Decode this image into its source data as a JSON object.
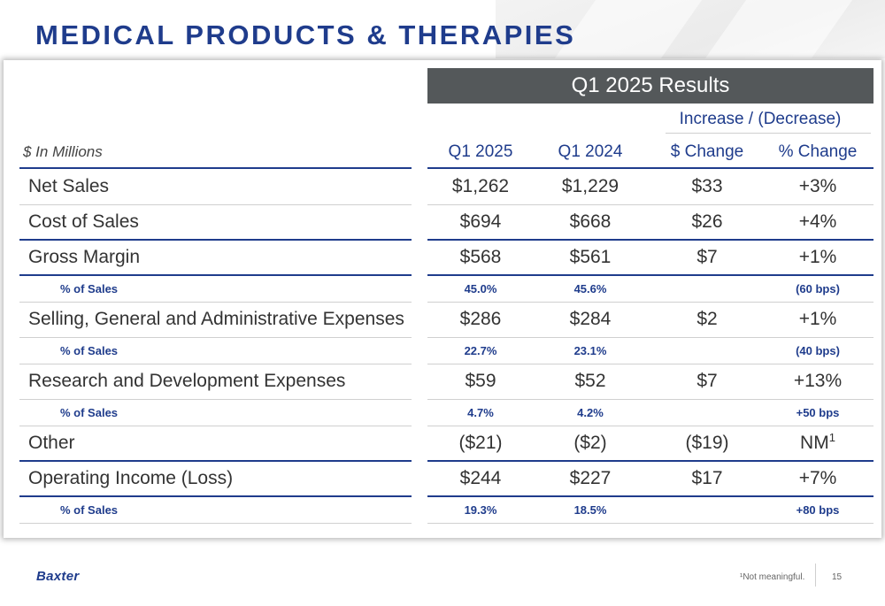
{
  "title": "MEDICAL PRODUCTS & THERAPIES",
  "table": {
    "results_header": "Q1 2025 Results",
    "increase_decrease_header": "Increase / (Decrease)",
    "units_label": "$ In Millions",
    "columns": [
      "Q1 2025",
      "Q1 2024",
      "$ Change",
      "% Change"
    ],
    "rows": [
      {
        "kind": "main",
        "label": "Net Sales",
        "values": [
          "$1,262",
          "$1,229",
          "$33",
          "+3%"
        ]
      },
      {
        "kind": "main",
        "label": "Cost of Sales",
        "values": [
          "$694",
          "$668",
          "$26",
          "+4%"
        ]
      },
      {
        "kind": "main",
        "label": "Gross Margin",
        "values": [
          "$568",
          "$561",
          "$7",
          "+1%"
        ]
      },
      {
        "kind": "pct",
        "label": "% of Sales",
        "values": [
          "45.0%",
          "45.6%",
          "",
          "(60 bps)"
        ]
      },
      {
        "kind": "main",
        "label": "Selling, General and Administrative Expenses",
        "values": [
          "$286",
          "$284",
          "$2",
          "+1%"
        ]
      },
      {
        "kind": "pct",
        "label": "% of Sales",
        "values": [
          "22.7%",
          "23.1%",
          "",
          "(40 bps)"
        ]
      },
      {
        "kind": "main",
        "label": "Research and Development Expenses",
        "values": [
          "$59",
          "$52",
          "$7",
          "+13%"
        ]
      },
      {
        "kind": "pct",
        "label": "% of Sales",
        "values": [
          "4.7%",
          "4.2%",
          "",
          "+50 bps"
        ]
      },
      {
        "kind": "main",
        "label": "Other",
        "values": [
          "($21)",
          "($2)",
          "($19)",
          "NM"
        ],
        "last_superscript": "1"
      },
      {
        "kind": "main",
        "label": "Operating Income (Loss)",
        "values": [
          "$244",
          "$227",
          "$17",
          "+7%"
        ]
      },
      {
        "kind": "pct",
        "label": "% of Sales",
        "values": [
          "19.3%",
          "18.5%",
          "",
          "+80 bps"
        ]
      }
    ]
  },
  "footer": {
    "logo_text": "Baxter",
    "footnote": "¹Not meaningful.",
    "page_number": "15"
  },
  "colors": {
    "brand_blue": "#1f3c8c",
    "header_gray": "#54585a"
  }
}
